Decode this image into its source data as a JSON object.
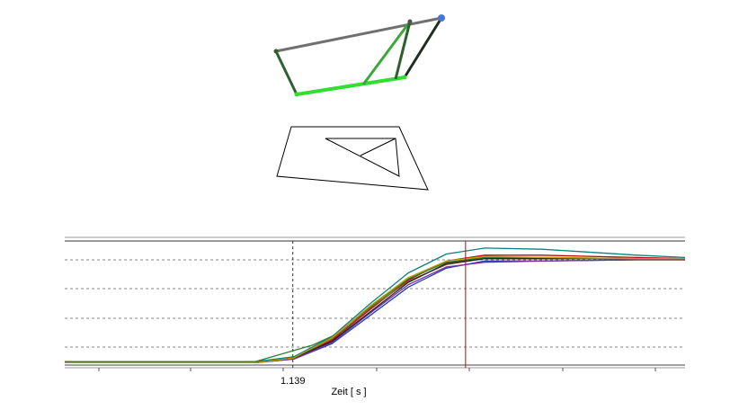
{
  "chart_data": {
    "type": "line",
    "xlabel": "Zeit [ s ]",
    "x_tick_label": "1.139",
    "cursor_a_x": 1.139,
    "cursor_b_x": 1.32,
    "xlim": [
      0.9,
      1.55
    ],
    "ylim": [
      0,
      1.05
    ],
    "grid": true,
    "series": [
      {
        "color": "#1f3fbf",
        "values": [
          [
            0.9,
            0.02
          ],
          [
            1.1,
            0.02
          ],
          [
            1.14,
            0.05
          ],
          [
            1.18,
            0.18
          ],
          [
            1.22,
            0.42
          ],
          [
            1.26,
            0.66
          ],
          [
            1.3,
            0.82
          ],
          [
            1.34,
            0.88
          ],
          [
            1.4,
            0.88
          ],
          [
            1.5,
            0.89
          ],
          [
            1.55,
            0.89
          ]
        ]
      },
      {
        "color": "#0f7f7f",
        "values": [
          [
            0.9,
            0.03
          ],
          [
            1.1,
            0.03
          ],
          [
            1.14,
            0.07
          ],
          [
            1.18,
            0.24
          ],
          [
            1.22,
            0.52
          ],
          [
            1.26,
            0.78
          ],
          [
            1.3,
            0.94
          ],
          [
            1.34,
            0.99
          ],
          [
            1.4,
            0.98
          ],
          [
            1.5,
            0.93
          ],
          [
            1.55,
            0.91
          ]
        ]
      },
      {
        "color": "#c00000",
        "values": [
          [
            0.9,
            0.02
          ],
          [
            1.1,
            0.02
          ],
          [
            1.14,
            0.06
          ],
          [
            1.18,
            0.21
          ],
          [
            1.22,
            0.47
          ],
          [
            1.26,
            0.72
          ],
          [
            1.3,
            0.88
          ],
          [
            1.34,
            0.93
          ],
          [
            1.4,
            0.93
          ],
          [
            1.5,
            0.91
          ],
          [
            1.55,
            0.9
          ]
        ]
      },
      {
        "color": "#2e7d32",
        "values": [
          [
            0.9,
            0.03
          ],
          [
            1.1,
            0.03
          ],
          [
            1.13,
            0.1
          ],
          [
            1.16,
            0.17
          ],
          [
            1.19,
            0.28
          ],
          [
            1.22,
            0.49
          ],
          [
            1.26,
            0.73
          ],
          [
            1.3,
            0.87
          ],
          [
            1.34,
            0.91
          ],
          [
            1.4,
            0.91
          ],
          [
            1.5,
            0.9
          ],
          [
            1.55,
            0.9
          ]
        ]
      },
      {
        "color": "#8b5a2b",
        "values": [
          [
            0.9,
            0.02
          ],
          [
            1.1,
            0.02
          ],
          [
            1.14,
            0.06
          ],
          [
            1.18,
            0.22
          ],
          [
            1.22,
            0.48
          ],
          [
            1.26,
            0.71
          ],
          [
            1.3,
            0.85
          ],
          [
            1.34,
            0.9
          ],
          [
            1.4,
            0.9
          ],
          [
            1.5,
            0.9
          ],
          [
            1.55,
            0.89
          ]
        ]
      },
      {
        "color": "#7b2fa0",
        "values": [
          [
            0.9,
            0.02
          ],
          [
            1.1,
            0.02
          ],
          [
            1.14,
            0.05
          ],
          [
            1.18,
            0.19
          ],
          [
            1.22,
            0.44
          ],
          [
            1.26,
            0.68
          ],
          [
            1.3,
            0.83
          ],
          [
            1.34,
            0.87
          ],
          [
            1.4,
            0.88
          ],
          [
            1.5,
            0.89
          ],
          [
            1.55,
            0.89
          ]
        ]
      },
      {
        "color": "#222222",
        "values": [
          [
            0.9,
            0.02
          ],
          [
            1.1,
            0.02
          ],
          [
            1.14,
            0.06
          ],
          [
            1.18,
            0.2
          ],
          [
            1.22,
            0.45
          ],
          [
            1.26,
            0.7
          ],
          [
            1.3,
            0.86
          ],
          [
            1.34,
            0.9
          ],
          [
            1.4,
            0.9
          ],
          [
            1.5,
            0.9
          ],
          [
            1.55,
            0.9
          ]
        ]
      },
      {
        "color": "#b8a000",
        "values": [
          [
            0.9,
            0.02
          ],
          [
            1.1,
            0.02
          ],
          [
            1.14,
            0.06
          ],
          [
            1.18,
            0.23
          ],
          [
            1.22,
            0.5
          ],
          [
            1.26,
            0.74
          ],
          [
            1.3,
            0.88
          ],
          [
            1.34,
            0.92
          ],
          [
            1.4,
            0.91
          ],
          [
            1.5,
            0.9
          ],
          [
            1.55,
            0.9
          ]
        ]
      }
    ]
  },
  "colors": {
    "green_bright": "#33dd33",
    "green_mid": "#3aa83a",
    "green_dark": "#2f5f2f",
    "gray_bar": "#6a6a6a",
    "blue_node": "#4a74d6",
    "cursor_red": "#cc0000",
    "grid": "#888888"
  }
}
